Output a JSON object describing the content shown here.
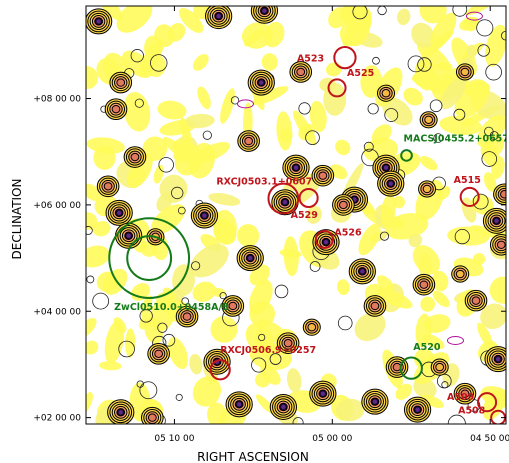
{
  "chart_data": {
    "type": "scatter",
    "title": "",
    "xlabel": "RIGHT ASCENSION",
    "ylabel": "DECLINATION",
    "x_ticks": [
      "05 10 00",
      "05 00 00",
      "04 50 00"
    ],
    "y_ticks": [
      "+08 00 00",
      "+06 00 00",
      "+04 00 00",
      "+02 00 00"
    ],
    "xlim_ra_minutes": [
      315.6,
      289.0
    ],
    "ylim_dec_deg": [
      1.88,
      9.74
    ],
    "axes": {
      "x_inverted": true,
      "grid": false,
      "legend": "none"
    },
    "colors": {
      "red_marker": "#c0141c",
      "green_marker": "#157a1a",
      "background_fill": "#fffb5a",
      "magenta_contour": "#b0149b"
    },
    "clusters": [
      {
        "name": "A523",
        "ra_min": 299.2,
        "dec_deg": 8.77,
        "color": "red",
        "radius_deg": 0.2
      },
      {
        "name": "A525",
        "ra_min": 299.7,
        "dec_deg": 8.2,
        "color": "red",
        "radius_deg": 0.16
      },
      {
        "name": "MACSJ0455.2+0657",
        "ra_min": 295.3,
        "dec_deg": 6.93,
        "color": "green",
        "radius_deg": 0.1
      },
      {
        "name": "RXCJ0503.1+0607",
        "ra_min": 303.1,
        "dec_deg": 6.12,
        "color": "red",
        "radius_deg": 0.28
      },
      {
        "name": "A529",
        "ra_min": 301.5,
        "dec_deg": 6.13,
        "color": "red",
        "radius_deg": 0.17
      },
      {
        "name": "A515",
        "ra_min": 291.3,
        "dec_deg": 6.15,
        "color": "red",
        "radius_deg": 0.17
      },
      {
        "name": "A526",
        "ra_min": 300.5,
        "dec_deg": 5.35,
        "color": "red",
        "radius_deg": 0.16
      },
      {
        "name": "ZwCl0510.0+0458A/B",
        "ra_min": 311.6,
        "dec_deg": 5.0,
        "color": "green",
        "radius_deg": 0.75
      },
      {
        "name": "RXCJ0506.9+0257",
        "ra_min": 307.1,
        "dec_deg": 2.9,
        "color": "red",
        "radius_deg": 0.18
      },
      {
        "name": "A520",
        "ra_min": 295.0,
        "dec_deg": 2.93,
        "color": "green",
        "radius_deg": 0.2
      },
      {
        "name": "A509",
        "ra_min": 290.2,
        "dec_deg": 2.29,
        "color": "red",
        "radius_deg": 0.17
      },
      {
        "name": "A508",
        "ra_min": 289.5,
        "dec_deg": 2.0,
        "color": "red",
        "radius_deg": 0.13
      }
    ],
    "sources": [
      {
        "ra_min": 314.8,
        "dec_deg": 9.45,
        "peak": "strong"
      },
      {
        "ra_min": 313.4,
        "dec_deg": 8.3,
        "peak": "medium"
      },
      {
        "ra_min": 313.7,
        "dec_deg": 7.8,
        "peak": "medium"
      },
      {
        "ra_min": 312.5,
        "dec_deg": 6.9,
        "peak": "medium"
      },
      {
        "ra_min": 313.5,
        "dec_deg": 5.85,
        "peak": "strong"
      },
      {
        "ra_min": 314.2,
        "dec_deg": 6.35,
        "peak": "medium"
      },
      {
        "ra_min": 312.9,
        "dec_deg": 5.42,
        "peak": "strong"
      },
      {
        "ra_min": 311.2,
        "dec_deg": 5.4,
        "peak": "weak"
      },
      {
        "ra_min": 307.2,
        "dec_deg": 9.55,
        "peak": "strong"
      },
      {
        "ra_min": 304.3,
        "dec_deg": 9.65,
        "peak": "strong"
      },
      {
        "ra_min": 304.5,
        "dec_deg": 8.3,
        "peak": "strong"
      },
      {
        "ra_min": 302.0,
        "dec_deg": 8.5,
        "peak": "medium"
      },
      {
        "ra_min": 305.3,
        "dec_deg": 7.2,
        "peak": "medium"
      },
      {
        "ra_min": 302.3,
        "dec_deg": 6.7,
        "peak": "strong"
      },
      {
        "ra_min": 303.0,
        "dec_deg": 6.05,
        "peak": "strong"
      },
      {
        "ra_min": 300.6,
        "dec_deg": 6.55,
        "peak": "medium"
      },
      {
        "ra_min": 298.6,
        "dec_deg": 6.1,
        "peak": "strong"
      },
      {
        "ra_min": 296.6,
        "dec_deg": 6.7,
        "peak": "strong"
      },
      {
        "ra_min": 296.3,
        "dec_deg": 6.4,
        "peak": "strong"
      },
      {
        "ra_min": 294.0,
        "dec_deg": 6.3,
        "peak": "weak"
      },
      {
        "ra_min": 299.3,
        "dec_deg": 6.0,
        "peak": "medium"
      },
      {
        "ra_min": 308.1,
        "dec_deg": 5.8,
        "peak": "strong"
      },
      {
        "ra_min": 305.2,
        "dec_deg": 5.0,
        "peak": "strong"
      },
      {
        "ra_min": 300.4,
        "dec_deg": 5.3,
        "peak": "strong"
      },
      {
        "ra_min": 298.1,
        "dec_deg": 4.75,
        "peak": "strong"
      },
      {
        "ra_min": 297.3,
        "dec_deg": 4.1,
        "peak": "medium"
      },
      {
        "ra_min": 294.2,
        "dec_deg": 4.5,
        "peak": "medium"
      },
      {
        "ra_min": 291.9,
        "dec_deg": 4.7,
        "peak": "weak"
      },
      {
        "ra_min": 289.6,
        "dec_deg": 5.7,
        "peak": "strong"
      },
      {
        "ra_min": 289.3,
        "dec_deg": 5.25,
        "peak": "medium"
      },
      {
        "ra_min": 290.9,
        "dec_deg": 4.2,
        "peak": "medium"
      },
      {
        "ra_min": 309.2,
        "dec_deg": 3.9,
        "peak": "medium"
      },
      {
        "ra_min": 306.3,
        "dec_deg": 4.1,
        "peak": "medium"
      },
      {
        "ra_min": 311.0,
        "dec_deg": 3.2,
        "peak": "medium"
      },
      {
        "ra_min": 307.3,
        "dec_deg": 3.05,
        "peak": "strong"
      },
      {
        "ra_min": 302.8,
        "dec_deg": 3.4,
        "peak": "medium"
      },
      {
        "ra_min": 295.9,
        "dec_deg": 2.95,
        "peak": "medium"
      },
      {
        "ra_min": 293.2,
        "dec_deg": 2.95,
        "peak": "weak"
      },
      {
        "ra_min": 289.5,
        "dec_deg": 3.1,
        "peak": "strong"
      },
      {
        "ra_min": 300.6,
        "dec_deg": 2.45,
        "peak": "strong"
      },
      {
        "ra_min": 303.1,
        "dec_deg": 2.2,
        "peak": "strong"
      },
      {
        "ra_min": 305.9,
        "dec_deg": 2.25,
        "peak": "strong"
      },
      {
        "ra_min": 297.3,
        "dec_deg": 2.3,
        "peak": "strong"
      },
      {
        "ra_min": 294.6,
        "dec_deg": 2.15,
        "peak": "strong"
      },
      {
        "ra_min": 291.6,
        "dec_deg": 2.45,
        "peak": "medium"
      },
      {
        "ra_min": 313.4,
        "dec_deg": 2.1,
        "peak": "strong"
      },
      {
        "ra_min": 311.4,
        "dec_deg": 2.0,
        "peak": "medium"
      },
      {
        "ra_min": 289.1,
        "dec_deg": 6.2,
        "peak": "medium"
      },
      {
        "ra_min": 301.3,
        "dec_deg": 3.7,
        "peak": "weak"
      },
      {
        "ra_min": 296.6,
        "dec_deg": 8.1,
        "peak": "weak"
      },
      {
        "ra_min": 291.6,
        "dec_deg": 8.5,
        "peak": "weak"
      },
      {
        "ra_min": 293.9,
        "dec_deg": 7.6,
        "peak": "weak"
      }
    ]
  }
}
